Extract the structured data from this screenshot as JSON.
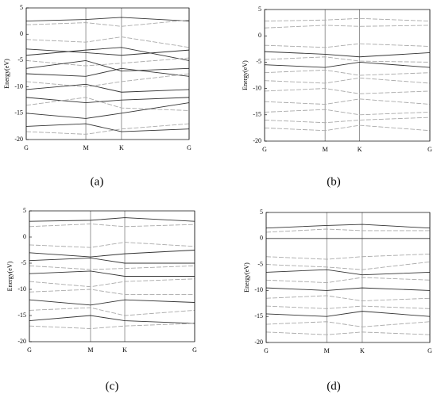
{
  "chart_data": [
    {
      "type": "line",
      "caption": "(a)",
      "ylabel": "Energy(eV)",
      "xlim": [
        0,
        1
      ],
      "ylim": [
        -20,
        5
      ],
      "yticks": [
        5,
        0,
        -5,
        -10,
        -15,
        -20
      ],
      "xticks": [
        {
          "value": 0,
          "label": "G"
        },
        {
          "value": 0.366,
          "label": "M"
        },
        {
          "value": 0.585,
          "label": "K"
        },
        {
          "value": 1,
          "label": "G"
        }
      ],
      "x": [
        0,
        0.366,
        0.585,
        1
      ],
      "series": [
        {
          "color": "#333333",
          "dash": false,
          "values": [
            2.5,
            2.8,
            3.2,
            2.5
          ]
        },
        {
          "color": "#aaaaaa",
          "dash": true,
          "values": [
            1.8,
            2.2,
            1.5,
            2.7
          ]
        },
        {
          "color": "#aaaaaa",
          "dash": true,
          "values": [
            -1,
            -1.5,
            -0.5,
            -2.5
          ]
        },
        {
          "color": "#333333",
          "dash": false,
          "values": [
            -2.8,
            -3.5,
            -4,
            -3
          ]
        },
        {
          "color": "#333333",
          "dash": false,
          "values": [
            -4,
            -3,
            -2.5,
            -5
          ]
        },
        {
          "color": "#aaaaaa",
          "dash": true,
          "values": [
            -5,
            -6,
            -5.5,
            -4.5
          ]
        },
        {
          "color": "#333333",
          "dash": false,
          "values": [
            -6.5,
            -5,
            -7,
            -6.5
          ]
        },
        {
          "color": "#333333",
          "dash": false,
          "values": [
            -7.5,
            -8,
            -6.5,
            -8
          ]
        },
        {
          "color": "#aaaaaa",
          "dash": true,
          "values": [
            -9,
            -10,
            -9,
            -7.5
          ]
        },
        {
          "color": "#333333",
          "dash": false,
          "values": [
            -10.5,
            -9.5,
            -11,
            -10.5
          ]
        },
        {
          "color": "#333333",
          "dash": false,
          "values": [
            -12,
            -13,
            -12.5,
            -12
          ]
        },
        {
          "color": "#aaaaaa",
          "dash": true,
          "values": [
            -13.5,
            -12,
            -14,
            -14.5
          ]
        },
        {
          "color": "#333333",
          "dash": false,
          "values": [
            -15,
            -16,
            -15,
            -13
          ]
        },
        {
          "color": "#333333",
          "dash": false,
          "values": [
            -17.5,
            -17,
            -18.5,
            -18
          ]
        },
        {
          "color": "#aaaaaa",
          "dash": true,
          "values": [
            -18.5,
            -19,
            -18,
            -17
          ]
        }
      ]
    },
    {
      "type": "line",
      "caption": "(b)",
      "ylabel": "Energy(eV)",
      "xlim": [
        0,
        1
      ],
      "ylim": [
        -20,
        5
      ],
      "yticks": [
        5,
        0,
        -5,
        -10,
        -15,
        -20
      ],
      "xticks": [
        {
          "value": 0,
          "label": "G"
        },
        {
          "value": 0.366,
          "label": "M"
        },
        {
          "value": 0.575,
          "label": "K"
        },
        {
          "value": 1,
          "label": "G"
        }
      ],
      "x": [
        0,
        0.366,
        0.575,
        1
      ],
      "series": [
        {
          "color": "#aaaaaa",
          "dash": true,
          "values": [
            2.8,
            3,
            3.3,
            2.8
          ]
        },
        {
          "color": "#aaaaaa",
          "dash": true,
          "values": [
            1.5,
            2,
            1.8,
            2
          ]
        },
        {
          "color": "#aaaaaa",
          "dash": true,
          "values": [
            -1.8,
            -2.2,
            -1.5,
            -2
          ]
        },
        {
          "color": "#333333",
          "dash": false,
          "values": [
            -3,
            -3.5,
            -4,
            -3.2
          ]
        },
        {
          "color": "#aaaaaa",
          "dash": true,
          "values": [
            -4.5,
            -4,
            -4.8,
            -5
          ]
        },
        {
          "color": "#333333",
          "dash": false,
          "values": [
            -5.5,
            -6,
            -5,
            -6
          ]
        },
        {
          "color": "#aaaaaa",
          "dash": true,
          "values": [
            -7,
            -6.5,
            -7.5,
            -7
          ]
        },
        {
          "color": "#aaaaaa",
          "dash": true,
          "values": [
            -8.5,
            -9,
            -8,
            -9
          ]
        },
        {
          "color": "#aaaaaa",
          "dash": true,
          "values": [
            -10.5,
            -10,
            -11,
            -10.5
          ]
        },
        {
          "color": "#aaaaaa",
          "dash": true,
          "values": [
            -12.5,
            -13,
            -12,
            -13
          ]
        },
        {
          "color": "#aaaaaa",
          "dash": true,
          "values": [
            -14.5,
            -14,
            -15,
            -14.5
          ]
        },
        {
          "color": "#aaaaaa",
          "dash": true,
          "values": [
            -16,
            -16.5,
            -16,
            -15.5
          ]
        },
        {
          "color": "#aaaaaa",
          "dash": true,
          "values": [
            -17.5,
            -18,
            -17,
            -18
          ]
        }
      ]
    },
    {
      "type": "line",
      "caption": "(c)",
      "ylabel": "Energy(eV)",
      "xlim": [
        0,
        1
      ],
      "ylim": [
        -20,
        5
      ],
      "yticks": [
        5,
        0,
        -5,
        -10,
        -15,
        -20
      ],
      "xticks": [
        {
          "value": 0,
          "label": "G"
        },
        {
          "value": 0.37,
          "label": "M"
        },
        {
          "value": 0.577,
          "label": "K"
        },
        {
          "value": 1,
          "label": "G"
        }
      ],
      "x": [
        0,
        0.37,
        0.577,
        1
      ],
      "series": [
        {
          "color": "#333333",
          "dash": false,
          "values": [
            3,
            3.2,
            3.7,
            3
          ]
        },
        {
          "color": "#aaaaaa",
          "dash": true,
          "values": [
            2,
            2.5,
            2,
            2.4
          ]
        },
        {
          "color": "#aaaaaa",
          "dash": true,
          "values": [
            -1.5,
            -2,
            -1,
            -1.8
          ]
        },
        {
          "color": "#333333",
          "dash": false,
          "values": [
            -3,
            -3.8,
            -3.2,
            -2.5
          ]
        },
        {
          "color": "#333333",
          "dash": false,
          "values": [
            -4.5,
            -4,
            -5,
            -5
          ]
        },
        {
          "color": "#aaaaaa",
          "dash": true,
          "values": [
            -5.5,
            -6.2,
            -6,
            -5.5
          ]
        },
        {
          "color": "#333333",
          "dash": false,
          "values": [
            -7,
            -6.5,
            -7.5,
            -7.5
          ]
        },
        {
          "color": "#aaaaaa",
          "dash": true,
          "values": [
            -8.5,
            -9.5,
            -8.5,
            -8
          ]
        },
        {
          "color": "#aaaaaa",
          "dash": true,
          "values": [
            -10.5,
            -10,
            -11,
            -11
          ]
        },
        {
          "color": "#333333",
          "dash": false,
          "values": [
            -12,
            -13,
            -12,
            -12.5
          ]
        },
        {
          "color": "#aaaaaa",
          "dash": true,
          "values": [
            -14,
            -13.5,
            -15,
            -14
          ]
        },
        {
          "color": "#333333",
          "dash": false,
          "values": [
            -16,
            -15,
            -16,
            -16.5
          ]
        },
        {
          "color": "#aaaaaa",
          "dash": true,
          "values": [
            -17,
            -17.5,
            -17,
            -16.5
          ]
        }
      ]
    },
    {
      "type": "line",
      "caption": "(d)",
      "ylabel": "Energy(eV)",
      "xlim": [
        0,
        1
      ],
      "ylim": [
        -20,
        5
      ],
      "yticks": [
        5,
        0,
        -5,
        -10,
        -15,
        -20
      ],
      "xticks": [
        {
          "value": 0,
          "label": "G"
        },
        {
          "value": 0.37,
          "label": "M"
        },
        {
          "value": 0.587,
          "label": "K"
        },
        {
          "value": 1,
          "label": "G"
        }
      ],
      "x": [
        0,
        0.37,
        0.587,
        1
      ],
      "series": [
        {
          "color": "#333333",
          "dash": false,
          "values": [
            2,
            2.5,
            2.7,
            2
          ]
        },
        {
          "color": "#aaaaaa",
          "dash": true,
          "values": [
            1.2,
            1.8,
            1.5,
            1.5
          ]
        },
        {
          "color": "#333333",
          "dash": false,
          "values": [
            0,
            0,
            0,
            0
          ]
        },
        {
          "color": "#aaaaaa",
          "dash": true,
          "values": [
            -3.5,
            -4,
            -3.5,
            -3
          ]
        },
        {
          "color": "#aaaaaa",
          "dash": true,
          "values": [
            -5,
            -5.5,
            -6,
            -4.5
          ]
        },
        {
          "color": "#333333",
          "dash": false,
          "values": [
            -6.5,
            -6,
            -7,
            -6.5
          ]
        },
        {
          "color": "#aaaaaa",
          "dash": true,
          "values": [
            -8,
            -8.5,
            -7.5,
            -8
          ]
        },
        {
          "color": "#333333",
          "dash": false,
          "values": [
            -9.5,
            -10,
            -9.5,
            -10
          ]
        },
        {
          "color": "#aaaaaa",
          "dash": true,
          "values": [
            -11.5,
            -11,
            -12,
            -11.5
          ]
        },
        {
          "color": "#aaaaaa",
          "dash": true,
          "values": [
            -13,
            -13.5,
            -13,
            -13.5
          ]
        },
        {
          "color": "#333333",
          "dash": false,
          "values": [
            -14.5,
            -15,
            -14,
            -15
          ]
        },
        {
          "color": "#aaaaaa",
          "dash": true,
          "values": [
            -16.5,
            -16,
            -17,
            -16
          ]
        },
        {
          "color": "#aaaaaa",
          "dash": true,
          "values": [
            -18,
            -18.5,
            -18,
            -18.5
          ]
        }
      ]
    }
  ]
}
